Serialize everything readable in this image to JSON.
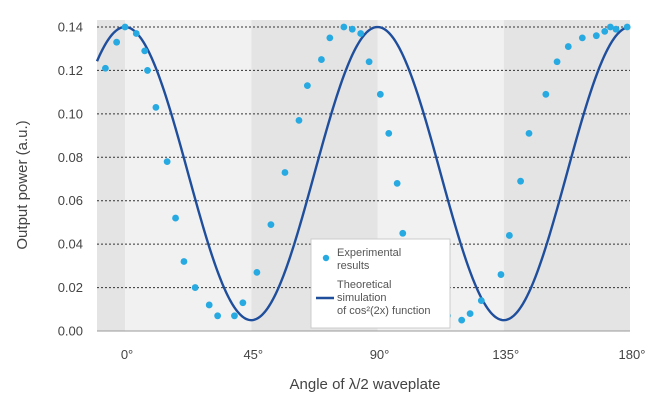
{
  "chart_data": {
    "type": "scatter",
    "xlabel": "Angle of λ/2 waveplate",
    "ylabel": "Output power (a.u.)",
    "xlim": [
      -10,
      180
    ],
    "ylim": [
      0.0,
      0.14
    ],
    "x_ticks": [
      0,
      45,
      90,
      135,
      180
    ],
    "x_tick_labels": [
      "0°",
      "45°",
      "90°",
      "135°",
      "180°"
    ],
    "y_ticks": [
      0.0,
      0.02,
      0.04,
      0.06,
      0.08,
      0.1,
      0.12,
      0.14
    ],
    "y_tick_labels": [
      "0.00",
      "0.02",
      "0.04",
      "0.06",
      "0.08",
      "0.10",
      "0.12",
      "0.14"
    ],
    "grid": "horizontal dashed",
    "background_bands": "alternating grey 45° bands",
    "legend_position": "bottom-center-right",
    "colors": {
      "experimental": "#27a9e1",
      "theoretical": "#1f4e9c",
      "band_dark": "#e4e4e4",
      "band_light": "#f1f1f1"
    },
    "series": [
      {
        "name": "Experimental results",
        "style": "points",
        "x": [
          -7,
          -3,
          0,
          4,
          7,
          8,
          11,
          15,
          18,
          21,
          25,
          30,
          33,
          39,
          42,
          47,
          52,
          57,
          62,
          65,
          70,
          73,
          78,
          81,
          84,
          87,
          91,
          94,
          97,
          99,
          103,
          105,
          111,
          115,
          120,
          123,
          127,
          134,
          137,
          141,
          144,
          150,
          154,
          158,
          163,
          168,
          171,
          173,
          175,
          179
        ],
        "y": [
          0.121,
          0.133,
          0.14,
          0.137,
          0.129,
          0.12,
          0.103,
          0.078,
          0.052,
          0.032,
          0.02,
          0.012,
          0.007,
          0.007,
          0.013,
          0.027,
          0.049,
          0.073,
          0.097,
          0.113,
          0.125,
          0.135,
          0.14,
          0.139,
          0.137,
          0.124,
          0.109,
          0.091,
          0.068,
          0.045,
          0.032,
          0.02,
          0.014,
          0.007,
          0.005,
          0.008,
          0.014,
          0.026,
          0.044,
          0.069,
          0.091,
          0.109,
          0.124,
          0.131,
          0.135,
          0.136,
          0.138,
          0.14,
          0.139,
          0.14
        ]
      },
      {
        "name": "Theoretical simulation of cos²(2x) function",
        "style": "line",
        "function": "cos^2(2x)",
        "amplitude": 0.135,
        "offset": 0.005,
        "x_range": [
          -10,
          180
        ]
      }
    ],
    "legend": {
      "experimental": [
        "Experimental",
        "results"
      ],
      "theoretical": [
        "Theoretical",
        "simulation",
        "of cos²(2x) function"
      ]
    }
  }
}
